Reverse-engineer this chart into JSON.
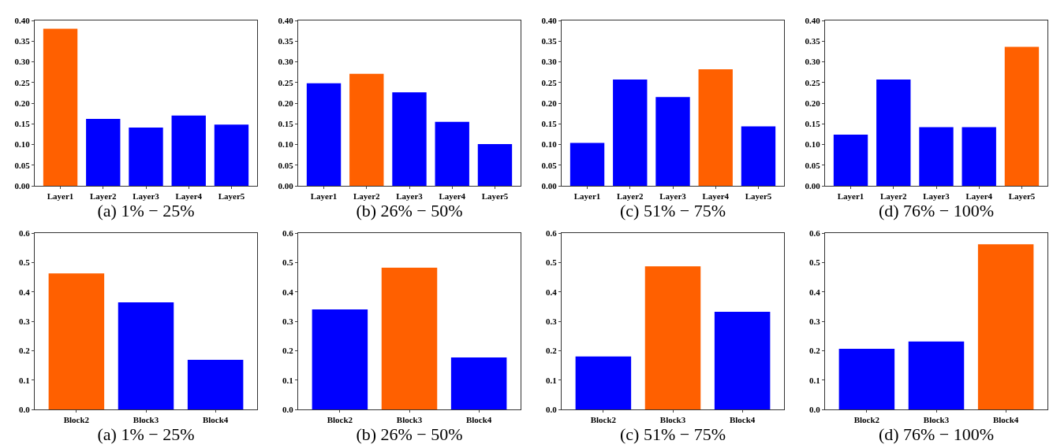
{
  "chart_data": [
    {
      "type": "bar",
      "xlabel": "(a) 1% − 25%",
      "categories": [
        "Layer1",
        "Layer2",
        "Layer3",
        "Layer4",
        "Layer5"
      ],
      "values": [
        0.38,
        0.162,
        0.141,
        0.17,
        0.148
      ],
      "colors": [
        "#ff6000",
        "#0000ff",
        "#0000ff",
        "#0000ff",
        "#0000ff"
      ],
      "ylim": [
        0,
        0.4
      ],
      "yticks": [
        {
          "value": 0,
          "label": "0.00"
        },
        {
          "value": 0.05,
          "label": "0.05"
        },
        {
          "value": 0.1,
          "label": "0.10"
        },
        {
          "value": 0.15,
          "label": "0.15"
        },
        {
          "value": 0.2,
          "label": "0.20"
        },
        {
          "value": 0.25,
          "label": "0.25"
        },
        {
          "value": 0.3,
          "label": "0.30"
        },
        {
          "value": 0.35,
          "label": "0.35"
        },
        {
          "value": 0.4,
          "label": "0.40"
        }
      ]
    },
    {
      "type": "bar",
      "xlabel": "(b) 26% − 50%",
      "categories": [
        "Layer1",
        "Layer2",
        "Layer3",
        "Layer4",
        "Layer5"
      ],
      "values": [
        0.248,
        0.271,
        0.226,
        0.155,
        0.101
      ],
      "colors": [
        "#0000ff",
        "#ff6000",
        "#0000ff",
        "#0000ff",
        "#0000ff"
      ],
      "ylim": [
        0,
        0.4
      ],
      "yticks": [
        {
          "value": 0,
          "label": "0.00"
        },
        {
          "value": 0.05,
          "label": "0.05"
        },
        {
          "value": 0.1,
          "label": "0.10"
        },
        {
          "value": 0.15,
          "label": "0.15"
        },
        {
          "value": 0.2,
          "label": "0.20"
        },
        {
          "value": 0.25,
          "label": "0.25"
        },
        {
          "value": 0.3,
          "label": "0.30"
        },
        {
          "value": 0.35,
          "label": "0.35"
        },
        {
          "value": 0.4,
          "label": "0.40"
        }
      ]
    },
    {
      "type": "bar",
      "xlabel": "(c) 51% − 75%",
      "categories": [
        "Layer1",
        "Layer2",
        "Layer3",
        "Layer4",
        "Layer5"
      ],
      "values": [
        0.104,
        0.257,
        0.215,
        0.282,
        0.144
      ],
      "colors": [
        "#0000ff",
        "#0000ff",
        "#0000ff",
        "#ff6000",
        "#0000ff"
      ],
      "ylim": [
        0,
        0.4
      ],
      "yticks": [
        {
          "value": 0,
          "label": "0.00"
        },
        {
          "value": 0.05,
          "label": "0.05"
        },
        {
          "value": 0.1,
          "label": "0.10"
        },
        {
          "value": 0.15,
          "label": "0.15"
        },
        {
          "value": 0.2,
          "label": "0.20"
        },
        {
          "value": 0.25,
          "label": "0.25"
        },
        {
          "value": 0.3,
          "label": "0.30"
        },
        {
          "value": 0.35,
          "label": "0.35"
        },
        {
          "value": 0.4,
          "label": "0.40"
        }
      ]
    },
    {
      "type": "bar",
      "xlabel": "(d) 76% − 100%",
      "categories": [
        "Layer1",
        "Layer2",
        "Layer3",
        "Layer4",
        "Layer5"
      ],
      "values": [
        0.124,
        0.257,
        0.142,
        0.142,
        0.336
      ],
      "colors": [
        "#0000ff",
        "#0000ff",
        "#0000ff",
        "#0000ff",
        "#ff6000"
      ],
      "ylim": [
        0,
        0.4
      ],
      "yticks": [
        {
          "value": 0,
          "label": "0.00"
        },
        {
          "value": 0.05,
          "label": "0.05"
        },
        {
          "value": 0.1,
          "label": "0.10"
        },
        {
          "value": 0.15,
          "label": "0.15"
        },
        {
          "value": 0.2,
          "label": "0.20"
        },
        {
          "value": 0.25,
          "label": "0.25"
        },
        {
          "value": 0.3,
          "label": "0.30"
        },
        {
          "value": 0.35,
          "label": "0.35"
        },
        {
          "value": 0.4,
          "label": "0.40"
        }
      ]
    },
    {
      "type": "bar",
      "xlabel": "(a) 1% − 25%",
      "categories": [
        "Block2",
        "Block3",
        "Block4"
      ],
      "values": [
        0.463,
        0.364,
        0.169
      ],
      "colors": [
        "#ff6000",
        "#0000ff",
        "#0000ff"
      ],
      "ylim": [
        0,
        0.6
      ],
      "yticks": [
        {
          "value": 0,
          "label": "0.0"
        },
        {
          "value": 0.1,
          "label": "0.1"
        },
        {
          "value": 0.2,
          "label": "0.2"
        },
        {
          "value": 0.3,
          "label": "0.3"
        },
        {
          "value": 0.4,
          "label": "0.4"
        },
        {
          "value": 0.5,
          "label": "0.5"
        },
        {
          "value": 0.6,
          "label": "0.6"
        }
      ]
    },
    {
      "type": "bar",
      "xlabel": "(b) 26% − 50%",
      "categories": [
        "Block2",
        "Block3",
        "Block4"
      ],
      "values": [
        0.34,
        0.482,
        0.177
      ],
      "colors": [
        "#0000ff",
        "#ff6000",
        "#0000ff"
      ],
      "ylim": [
        0,
        0.6
      ],
      "yticks": [
        {
          "value": 0,
          "label": "0.0"
        },
        {
          "value": 0.1,
          "label": "0.1"
        },
        {
          "value": 0.2,
          "label": "0.2"
        },
        {
          "value": 0.3,
          "label": "0.3"
        },
        {
          "value": 0.4,
          "label": "0.4"
        },
        {
          "value": 0.5,
          "label": "0.5"
        },
        {
          "value": 0.6,
          "label": "0.6"
        }
      ]
    },
    {
      "type": "bar",
      "xlabel": "(c) 51% − 75%",
      "categories": [
        "Block2",
        "Block3",
        "Block4"
      ],
      "values": [
        0.18,
        0.487,
        0.332
      ],
      "colors": [
        "#0000ff",
        "#ff6000",
        "#0000ff"
      ],
      "ylim": [
        0,
        0.6
      ],
      "yticks": [
        {
          "value": 0,
          "label": "0.0"
        },
        {
          "value": 0.1,
          "label": "0.1"
        },
        {
          "value": 0.2,
          "label": "0.2"
        },
        {
          "value": 0.3,
          "label": "0.3"
        },
        {
          "value": 0.4,
          "label": "0.4"
        },
        {
          "value": 0.5,
          "label": "0.5"
        },
        {
          "value": 0.6,
          "label": "0.6"
        }
      ]
    },
    {
      "type": "bar",
      "xlabel": "(d) 76% − 100%",
      "categories": [
        "Block2",
        "Block3",
        "Block4"
      ],
      "values": [
        0.206,
        0.231,
        0.562
      ],
      "colors": [
        "#0000ff",
        "#0000ff",
        "#ff6000"
      ],
      "ylim": [
        0,
        0.6
      ],
      "yticks": [
        {
          "value": 0,
          "label": "0.0"
        },
        {
          "value": 0.1,
          "label": "0.1"
        },
        {
          "value": 0.2,
          "label": "0.2"
        },
        {
          "value": 0.3,
          "label": "0.3"
        },
        {
          "value": 0.4,
          "label": "0.4"
        },
        {
          "value": 0.5,
          "label": "0.5"
        },
        {
          "value": 0.6,
          "label": "0.6"
        }
      ]
    }
  ]
}
